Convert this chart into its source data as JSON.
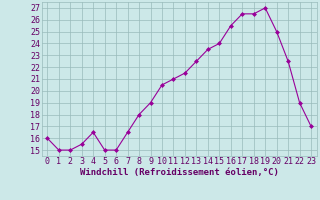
{
  "x": [
    0,
    1,
    2,
    3,
    4,
    5,
    6,
    7,
    8,
    9,
    10,
    11,
    12,
    13,
    14,
    15,
    16,
    17,
    18,
    19,
    20,
    21,
    22,
    23
  ],
  "y": [
    16,
    15,
    15,
    15.5,
    16.5,
    15,
    15,
    16.5,
    18,
    19,
    20.5,
    21,
    21.5,
    22.5,
    23.5,
    24,
    25.5,
    26.5,
    26.5,
    27,
    25,
    22.5,
    19,
    17
  ],
  "line_color": "#990099",
  "marker": "D",
  "marker_size": 2,
  "bg_color": "#cce8e8",
  "grid_color": "#99bbbb",
  "xlabel": "Windchill (Refroidissement éolien,°C)",
  "xlabel_color": "#660066",
  "tick_color": "#660066",
  "ylim": [
    14.5,
    27.5
  ],
  "xlim": [
    -0.5,
    23.5
  ],
  "yticks": [
    15,
    16,
    17,
    18,
    19,
    20,
    21,
    22,
    23,
    24,
    25,
    26,
    27
  ],
  "xticks": [
    0,
    1,
    2,
    3,
    4,
    5,
    6,
    7,
    8,
    9,
    10,
    11,
    12,
    13,
    14,
    15,
    16,
    17,
    18,
    19,
    20,
    21,
    22,
    23
  ],
  "xlabel_fontsize": 6.5,
  "tick_fontsize": 6,
  "line_width": 0.8
}
